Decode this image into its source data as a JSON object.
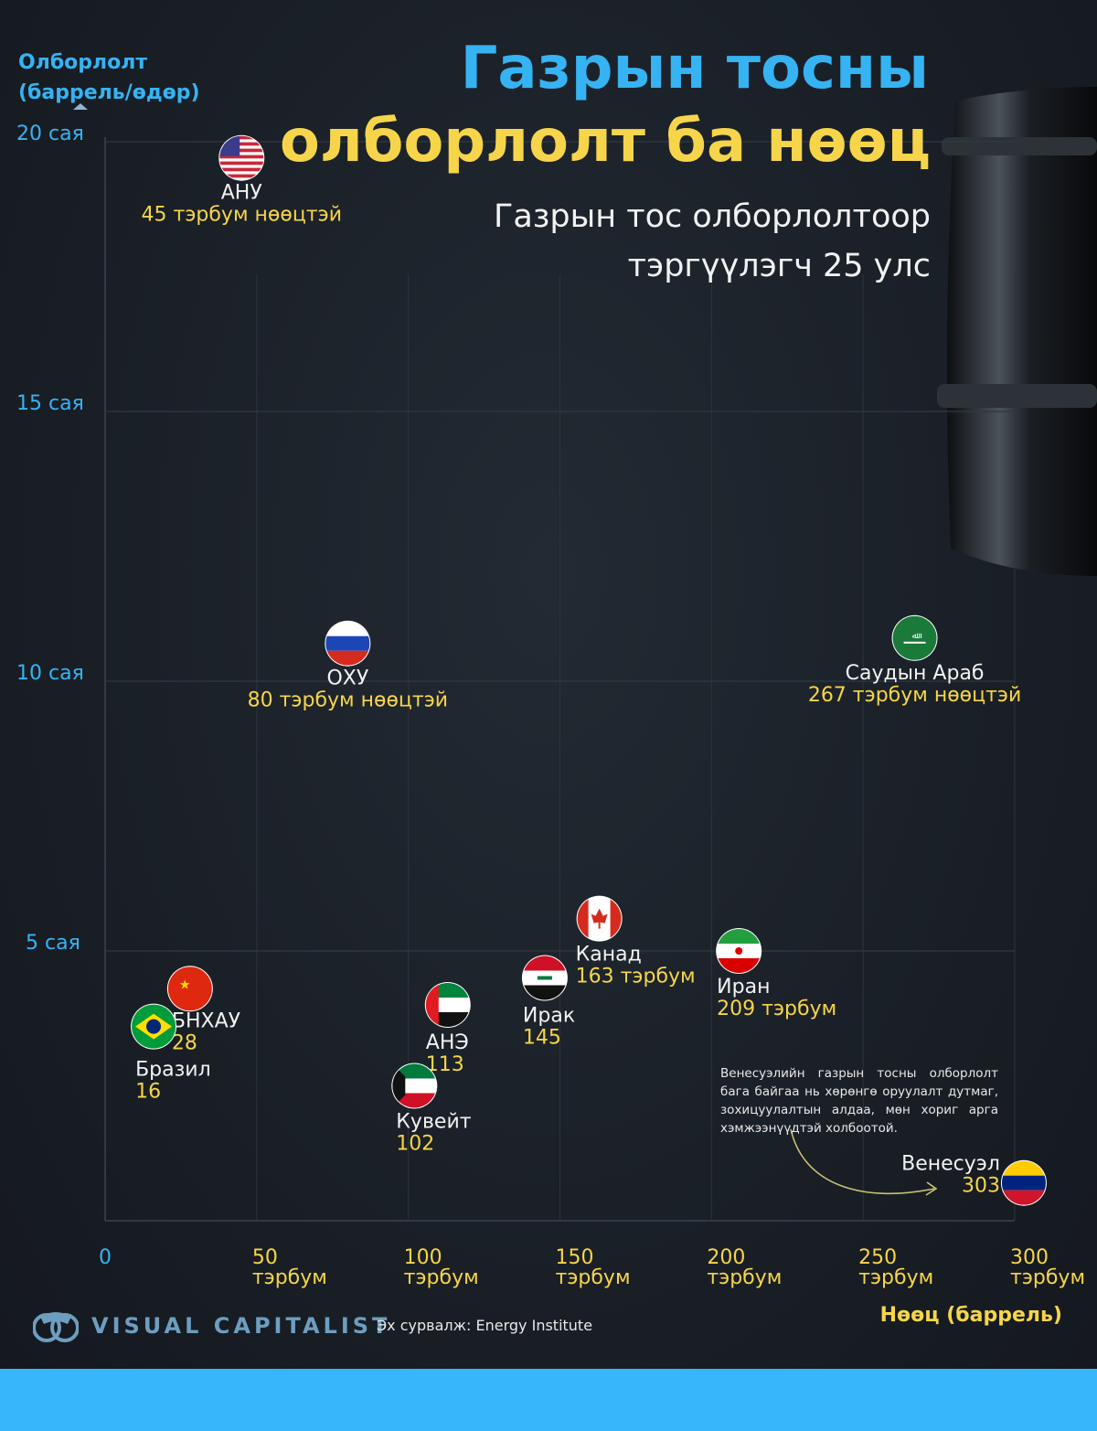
{
  "title_line1": "Газрын тосны",
  "title_line2": "олборлолт ба нөөц",
  "subtitle_line1": "Газрын тос олборлолтоор",
  "subtitle_line2": "тэргүүлэгч 25 улс",
  "note": "Венесуэлийн газрын тосны олборлолт бага байгаа нь хөрөнгө оруулалт дутмаг, зохицуулалтын алдаа, мөн хориг арга хэмжээнүүдтэй холбоотой.",
  "logo": "VISUAL CAPITALIST",
  "source": "Эх сурвалж: Energy Institute",
  "colors": {
    "title_blue": "#36b3f3",
    "accent_yellow": "#f6d54a",
    "background": "#191f27",
    "footer": "#38b6fb"
  },
  "chart_data": {
    "type": "scatter",
    "title": "Газрын тосны олборлолт ба нөөц",
    "ylabel_line1": "Олборлолт",
    "ylabel_line2": "(баррель/өдөр)",
    "xlabel": "Нөөц (баррель)",
    "xlim": [
      0,
      300
    ],
    "ylim": [
      0,
      20
    ],
    "grid": true,
    "x_ticks": [
      {
        "value": 0,
        "line1": "0",
        "line2": ""
      },
      {
        "value": 50,
        "line1": "50",
        "line2": "тэрбум"
      },
      {
        "value": 100,
        "line1": "100",
        "line2": "тэрбум"
      },
      {
        "value": 150,
        "line1": "150",
        "line2": "тэрбум"
      },
      {
        "value": 200,
        "line1": "200",
        "line2": "тэрбум"
      },
      {
        "value": 250,
        "line1": "250",
        "line2": "тэрбум"
      },
      {
        "value": 300,
        "line1": "300",
        "line2": "тэрбум"
      }
    ],
    "y_ticks": [
      {
        "value": 5,
        "label": "5 сая"
      },
      {
        "value": 10,
        "label": "10 сая"
      },
      {
        "value": 15,
        "label": "15 сая"
      },
      {
        "value": 20,
        "label": "20 сая"
      }
    ],
    "points": [
      {
        "country": "АНУ",
        "value_label": "45 тэрбум нөөцтэй",
        "reserves": 45,
        "production": 19.7,
        "flag": "usa"
      },
      {
        "country": "ОХУ",
        "value_label": "80 тэрбум нөөцтэй",
        "reserves": 80,
        "production": 10.7,
        "flag": "russia"
      },
      {
        "country": "Саудын Араб",
        "value_label": "267 тэрбум нөөцтэй",
        "reserves": 267,
        "production": 10.8,
        "flag": "saudi"
      },
      {
        "country": "Канад",
        "value_label": "163 тэрбум",
        "reserves": 163,
        "production": 5.6,
        "flag": "canada"
      },
      {
        "country": "Иран",
        "value_label": "209 тэрбум",
        "reserves": 209,
        "production": 5.0,
        "flag": "iran"
      },
      {
        "country": "Ирак",
        "value_label": "145",
        "reserves": 145,
        "production": 4.5,
        "flag": "iraq"
      },
      {
        "country": "АНЭ",
        "value_label": "113",
        "reserves": 113,
        "production": 4.0,
        "flag": "uae"
      },
      {
        "country": "БНХАУ",
        "value_label": "28",
        "reserves": 28,
        "production": 4.3,
        "flag": "china"
      },
      {
        "country": "Бразил",
        "value_label": "16",
        "reserves": 16,
        "production": 3.6,
        "flag": "brazil"
      },
      {
        "country": "Кувейт",
        "value_label": "102",
        "reserves": 102,
        "production": 2.5,
        "flag": "kuwait"
      },
      {
        "country": "Венесуэл",
        "value_label": "303",
        "reserves": 303,
        "production": 0.7,
        "flag": "venezuela"
      }
    ]
  }
}
